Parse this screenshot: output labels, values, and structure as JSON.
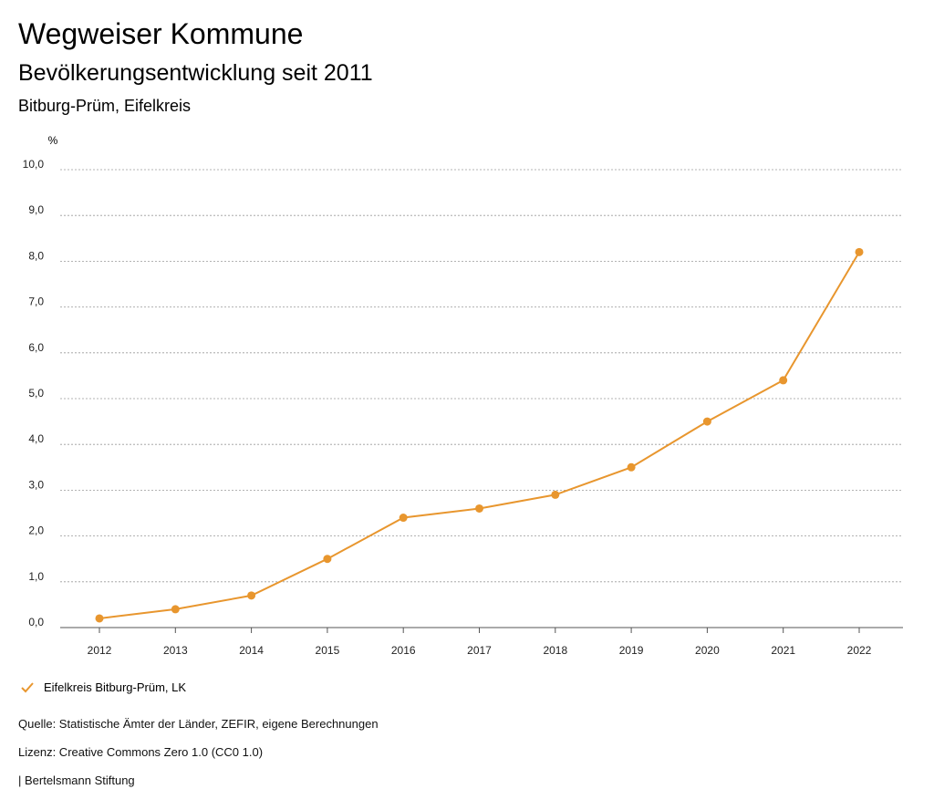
{
  "header": {
    "title": "Wegweiser Kommune",
    "subtitle": "Bevölkerungsentwicklung seit 2011",
    "region": "Bitburg-Prüm, Eifelkreis"
  },
  "chart_data": {
    "type": "line",
    "ylabel": "%",
    "xlabel": "",
    "ylim": [
      0,
      10
    ],
    "yticks": [
      "0,0",
      "1,0",
      "2,0",
      "3,0",
      "4,0",
      "5,0",
      "6,0",
      "7,0",
      "8,0",
      "9,0",
      "10,0"
    ],
    "categories": [
      "2012",
      "2013",
      "2014",
      "2015",
      "2016",
      "2017",
      "2018",
      "2019",
      "2020",
      "2021",
      "2022"
    ],
    "series": [
      {
        "name": "Eifelkreis Bitburg-Prüm, LK",
        "color": "#E8962E",
        "values": [
          0.2,
          0.4,
          0.7,
          1.5,
          2.4,
          2.6,
          2.9,
          3.5,
          4.5,
          5.4,
          8.2
        ]
      }
    ],
    "grid": true,
    "legend_position": "bottom-left"
  },
  "legend": {
    "label": "Eifelkreis Bitburg-Prüm, LK",
    "icon": "check-icon"
  },
  "footer": {
    "source": "Quelle: Statistische Ämter der Länder, ZEFIR, eigene Berechnungen",
    "license": "Lizenz: Creative Commons Zero 1.0 (CC0 1.0)",
    "publisher": "| Bertelsmann Stiftung"
  }
}
